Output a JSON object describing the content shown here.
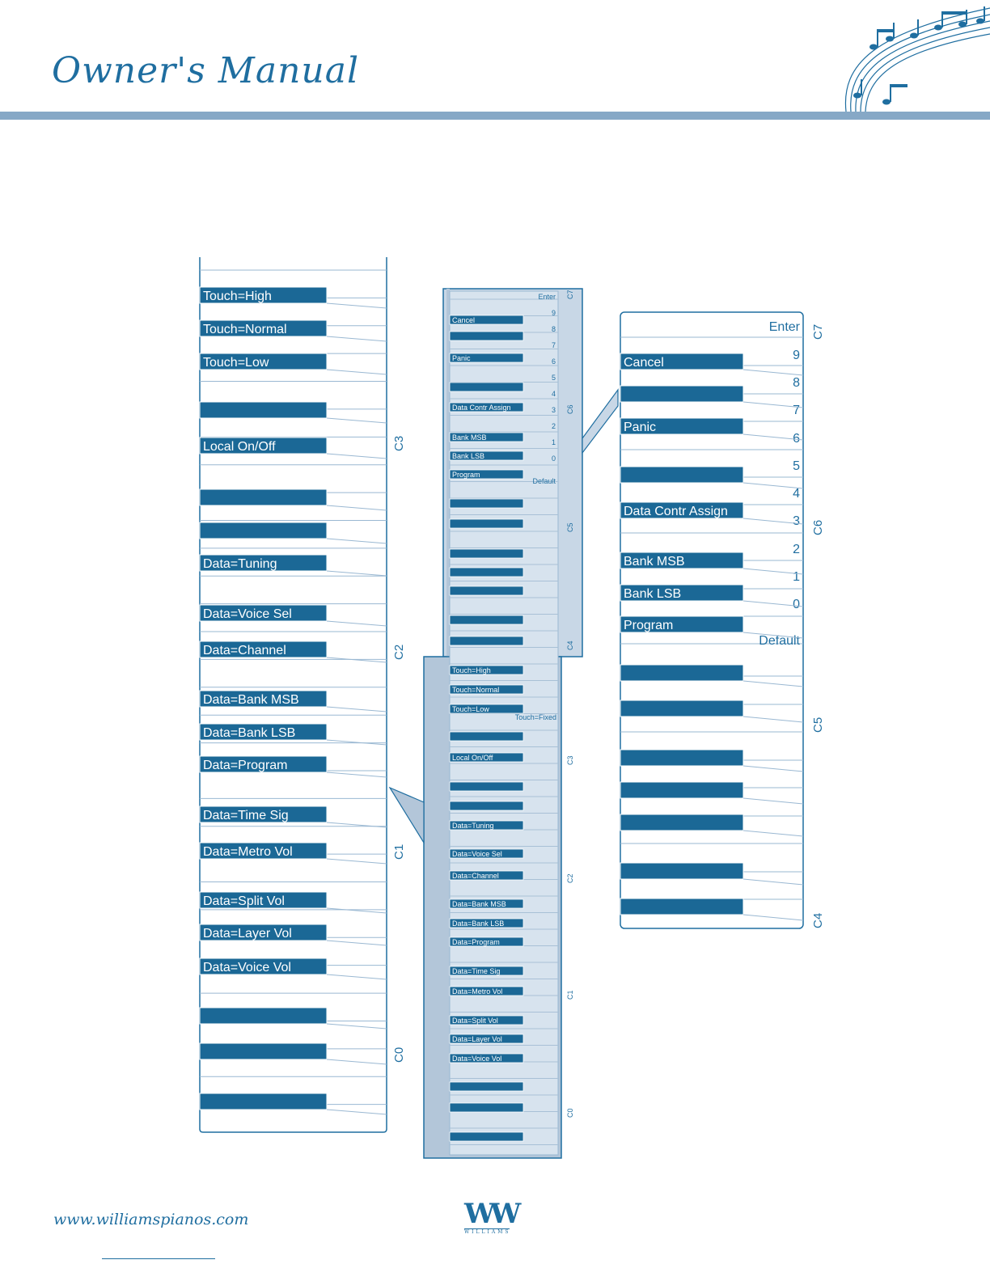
{
  "header": {
    "title": "Owner's Manual",
    "rule_color": "#86a8c6",
    "decoration": "music-staff-swirl"
  },
  "footer": {
    "url": "www.williamspianos.com",
    "logo": "WW",
    "logo_wordmark": "WILLIAMS"
  },
  "colors": {
    "key_fill": "#1b6896",
    "line": "#1f6ea0",
    "panel_fill": "#c8d7e6",
    "panel_dark": "#b3c6d9"
  },
  "left_keyboard": {
    "labels": [
      "Touch=High",
      "Touch=Normal",
      "Touch=Low",
      "Local On/Off",
      "Data=Tuning",
      "Data=Voice Sel",
      "Data=Channel",
      "Data=Bank MSB",
      "Data=Bank LSB",
      "Data=Program",
      "Data=Time Sig",
      "Data=Metro Vol",
      "Data=Split Vol",
      "Data=Layer Vol",
      "Data=Voice Vol"
    ],
    "octaves": [
      "C3",
      "C2",
      "C1",
      "C0"
    ]
  },
  "center_keyboard": {
    "upper": {
      "labels": [
        "Cancel",
        "Panic",
        "Data Contr Assign",
        "Bank MSB",
        "Bank LSB",
        "Program"
      ],
      "white_labels": [
        "Enter",
        "9",
        "8",
        "7",
        "6",
        "5",
        "4",
        "3",
        "2",
        "1",
        "0",
        "Default"
      ],
      "octaves": [
        "C7",
        "C6",
        "C5",
        "C4"
      ]
    },
    "lower": {
      "labels": [
        "Touch=High",
        "Touch=Normal",
        "Touch=Low",
        "Local On/Off",
        "Data=Tuning",
        "Data=Voice Sel",
        "Data=Channel",
        "Data=Bank MSB",
        "Data=Bank LSB",
        "Data=Program",
        "Data=Time Sig",
        "Data=Metro Vol",
        "Data=Split Vol",
        "Data=Layer Vol",
        "Data=Voice Vol"
      ],
      "white_labels": [
        "Touch=Fixed"
      ],
      "octaves": [
        "C3",
        "C2",
        "C1",
        "C0"
      ]
    }
  },
  "right_keyboard": {
    "labels": [
      "Cancel",
      "Panic",
      "Data Contr Assign",
      "Bank MSB",
      "Bank LSB",
      "Program"
    ],
    "white_labels": [
      "Enter",
      "9",
      "8",
      "7",
      "6",
      "5",
      "4",
      "3",
      "2",
      "1",
      "0",
      "Default"
    ],
    "octaves": [
      "C7",
      "C6",
      "C5",
      "C4"
    ]
  }
}
